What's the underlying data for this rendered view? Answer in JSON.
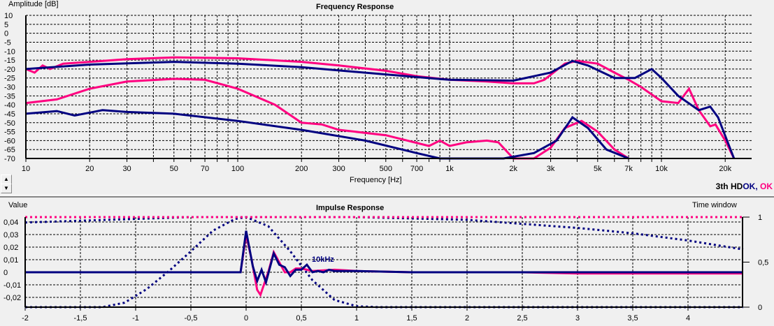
{
  "chart_data": [
    {
      "type": "line",
      "title": "Frequency Response",
      "ylabel": "Amplitude [dB]",
      "xlabel": "Frequency [Hz]",
      "xscale": "log",
      "xlim": [
        10,
        25000
      ],
      "ylim": [
        -70,
        10
      ],
      "yticks": [
        "10",
        "5",
        "0",
        "-5",
        "-10",
        "-15",
        "-20",
        "-25",
        "-30",
        "-35",
        "-40",
        "-45",
        "-50",
        "-55",
        "-60",
        "-65",
        "-70"
      ],
      "xticks": [
        {
          "v": 10,
          "l": "10"
        },
        {
          "v": 20,
          "l": "20"
        },
        {
          "v": 30,
          "l": "30"
        },
        {
          "v": 50,
          "l": "50"
        },
        {
          "v": 70,
          "l": "70"
        },
        {
          "v": 100,
          "l": "100"
        },
        {
          "v": 200,
          "l": "200"
        },
        {
          "v": 300,
          "l": "300"
        },
        {
          "v": 500,
          "l": "500"
        },
        {
          "v": 700,
          "l": "700"
        },
        {
          "v": 1000,
          "l": "1k"
        },
        {
          "v": 2000,
          "l": "2k"
        },
        {
          "v": 3000,
          "l": "3k"
        },
        {
          "v": 5000,
          "l": "5k"
        },
        {
          "v": 7000,
          "l": "7k"
        },
        {
          "v": 10000,
          "l": "10k"
        },
        {
          "v": 20000,
          "l": "20k"
        }
      ],
      "legend": {
        "prefix": "3th HD",
        "items": [
          {
            "label": "OK,",
            "color": "#000080"
          },
          {
            "label": " OK",
            "color": "#ff0080"
          }
        ]
      },
      "series": [
        {
          "name": "OK fundamental (magenta)",
          "color": "#ff0080",
          "points": [
            [
              10,
              -20
            ],
            [
              11,
              -22
            ],
            [
              12,
              -18
            ],
            [
              13,
              -20
            ],
            [
              15,
              -17
            ],
            [
              20,
              -16
            ],
            [
              30,
              -14.5
            ],
            [
              50,
              -13.5
            ],
            [
              100,
              -14
            ],
            [
              200,
              -16
            ],
            [
              300,
              -18
            ],
            [
              500,
              -21
            ],
            [
              700,
              -24
            ],
            [
              1000,
              -26
            ],
            [
              1500,
              -27
            ],
            [
              2000,
              -28
            ],
            [
              2500,
              -28
            ],
            [
              2800,
              -26
            ],
            [
              3500,
              -17
            ],
            [
              4000,
              -15.5
            ],
            [
              5000,
              -17
            ],
            [
              6000,
              -22
            ],
            [
              7000,
              -26
            ],
            [
              8000,
              -30
            ],
            [
              10000,
              -38
            ],
            [
              12000,
              -39
            ],
            [
              13500,
              -31
            ],
            [
              15000,
              -43
            ],
            [
              17000,
              -52
            ],
            [
              18000,
              -51
            ],
            [
              20000,
              -60
            ],
            [
              22000,
              -70
            ]
          ]
        },
        {
          "name": "OK fundamental (blue)",
          "color": "#000080",
          "points": [
            [
              10,
              -20
            ],
            [
              20,
              -17.5
            ],
            [
              50,
              -16
            ],
            [
              100,
              -17
            ],
            [
              200,
              -19
            ],
            [
              500,
              -23
            ],
            [
              1000,
              -26
            ],
            [
              2000,
              -26.5
            ],
            [
              3000,
              -22
            ],
            [
              3800,
              -15.5
            ],
            [
              4500,
              -18
            ],
            [
              6000,
              -25
            ],
            [
              7500,
              -25
            ],
            [
              9000,
              -20
            ],
            [
              10000,
              -25
            ],
            [
              12000,
              -35
            ],
            [
              15000,
              -43
            ],
            [
              17000,
              -41
            ],
            [
              18500,
              -47
            ],
            [
              22000,
              -70
            ]
          ]
        },
        {
          "name": "3th HD (magenta)",
          "color": "#ff0080",
          "points": [
            [
              10,
              -39
            ],
            [
              14,
              -37
            ],
            [
              20,
              -31
            ],
            [
              30,
              -27
            ],
            [
              50,
              -25.5
            ],
            [
              70,
              -26
            ],
            [
              100,
              -31
            ],
            [
              150,
              -40
            ],
            [
              200,
              -50
            ],
            [
              250,
              -51
            ],
            [
              300,
              -54
            ],
            [
              500,
              -57
            ],
            [
              800,
              -63
            ],
            [
              900,
              -60
            ],
            [
              1000,
              -63
            ],
            [
              1200,
              -61
            ],
            [
              1500,
              -60
            ],
            [
              1700,
              -61
            ],
            [
              2000,
              -70
            ],
            [
              2500,
              -70
            ],
            [
              3000,
              -64
            ],
            [
              3500,
              -53
            ],
            [
              4200,
              -49
            ],
            [
              5000,
              -55
            ],
            [
              6000,
              -65
            ],
            [
              7000,
              -70
            ]
          ]
        },
        {
          "name": "3th HD (blue)",
          "color": "#000080",
          "points": [
            [
              10,
              -45
            ],
            [
              14,
              -43.5
            ],
            [
              17,
              -46
            ],
            [
              23,
              -43
            ],
            [
              30,
              -44
            ],
            [
              50,
              -45
            ],
            [
              100,
              -49
            ],
            [
              200,
              -54
            ],
            [
              400,
              -60
            ],
            [
              700,
              -67
            ],
            [
              900,
              -70
            ],
            [
              1800,
              -70
            ],
            [
              2500,
              -67
            ],
            [
              3200,
              -60
            ],
            [
              3800,
              -47
            ],
            [
              4500,
              -53
            ],
            [
              5500,
              -65
            ],
            [
              7000,
              -70
            ]
          ]
        }
      ]
    },
    {
      "type": "line",
      "title": "Impulse Response",
      "ylabel": "Value",
      "y2label": "Time window",
      "xlim": [
        -2,
        4.5
      ],
      "ylim": [
        -0.028,
        0.044
      ],
      "y2lim": [
        0,
        1
      ],
      "yticks": [
        {
          "v": 0.04,
          "l": "0,04"
        },
        {
          "v": 0.03,
          "l": "0,03"
        },
        {
          "v": 0.02,
          "l": "0,02"
        },
        {
          "v": 0.01,
          "l": "0,01"
        },
        {
          "v": 0,
          "l": "0"
        },
        {
          "v": -0.01,
          "l": "-0,01"
        },
        {
          "v": -0.02,
          "l": "-0,02"
        }
      ],
      "y2ticks": [
        {
          "v": 1,
          "l": "1"
        },
        {
          "v": 0.5,
          "l": "0,5"
        },
        {
          "v": 0,
          "l": "0"
        }
      ],
      "xticks": [
        {
          "v": -2,
          "l": "-2"
        },
        {
          "v": -1.5,
          "l": "-1,5"
        },
        {
          "v": -1,
          "l": "-1"
        },
        {
          "v": -0.5,
          "l": "-0,5"
        },
        {
          "v": 0,
          "l": "0"
        },
        {
          "v": 0.5,
          "l": "0,5"
        },
        {
          "v": 1,
          "l": "1"
        },
        {
          "v": 1.5,
          "l": "1,5"
        },
        {
          "v": 2,
          "l": "2"
        },
        {
          "v": 2.5,
          "l": "2,5"
        },
        {
          "v": 3,
          "l": "3"
        },
        {
          "v": 3.5,
          "l": "3,5"
        },
        {
          "v": 4,
          "l": "4"
        }
      ],
      "annotation": "10kHz",
      "series": [
        {
          "name": "impulse magenta",
          "color": "#ff0080",
          "points": [
            [
              -2,
              0
            ],
            [
              -0.05,
              0
            ],
            [
              0,
              0.03
            ],
            [
              0.05,
              0.01
            ],
            [
              0.1,
              -0.014
            ],
            [
              0.13,
              -0.018
            ],
            [
              0.2,
              0
            ],
            [
              0.25,
              0.016
            ],
            [
              0.3,
              0.008
            ],
            [
              0.35,
              0
            ],
            [
              0.4,
              0
            ],
            [
              0.45,
              0.003
            ],
            [
              0.5,
              0.003
            ],
            [
              0.55,
              0.002
            ],
            [
              0.6,
              0.001
            ],
            [
              0.8,
              0.002
            ],
            [
              1,
              0.001
            ],
            [
              1.5,
              0
            ],
            [
              2.5,
              0
            ],
            [
              3,
              -0.001
            ],
            [
              4.5,
              -0.001
            ]
          ]
        },
        {
          "name": "impulse blue",
          "color": "#000080",
          "points": [
            [
              -2,
              0
            ],
            [
              -0.05,
              0
            ],
            [
              0,
              0.033
            ],
            [
              0.06,
              0.005
            ],
            [
              0.1,
              -0.007
            ],
            [
              0.14,
              0.002
            ],
            [
              0.18,
              -0.008
            ],
            [
              0.25,
              0.015
            ],
            [
              0.3,
              0.006
            ],
            [
              0.35,
              0.004
            ],
            [
              0.4,
              -0.003
            ],
            [
              0.45,
              0.002
            ],
            [
              0.5,
              0.002
            ],
            [
              0.55,
              0.006
            ],
            [
              0.6,
              0
            ],
            [
              0.65,
              0.001
            ],
            [
              0.7,
              0
            ],
            [
              0.75,
              0.002
            ],
            [
              0.8,
              0.001
            ],
            [
              1,
              0.001
            ],
            [
              1.5,
              0
            ],
            [
              4.5,
              0
            ]
          ]
        },
        {
          "name": "time window 1",
          "color": "#000080",
          "dotted": true,
          "axis": "y2",
          "points": [
            [
              -2,
              0
            ],
            [
              -1.3,
              0
            ],
            [
              -1.1,
              0.05
            ],
            [
              -0.9,
              0.2
            ],
            [
              -0.7,
              0.4
            ],
            [
              -0.5,
              0.62
            ],
            [
              -0.3,
              0.85
            ],
            [
              -0.1,
              0.98
            ],
            [
              0,
              1
            ],
            [
              0.2,
              0.9
            ],
            [
              0.4,
              0.62
            ],
            [
              0.6,
              0.3
            ],
            [
              0.8,
              0.08
            ],
            [
              1,
              0.01
            ],
            [
              1.2,
              0
            ],
            [
              4.5,
              0
            ]
          ]
        },
        {
          "name": "time window 2",
          "color": "#000080",
          "dotted": true,
          "axis": "y2",
          "points": [
            [
              -2,
              0.94
            ],
            [
              -1.5,
              0.96
            ],
            [
              -1,
              0.98
            ],
            [
              -0.5,
              1
            ],
            [
              1,
              1
            ],
            [
              2,
              0.97
            ],
            [
              3,
              0.88
            ],
            [
              3.5,
              0.82
            ],
            [
              4,
              0.74
            ],
            [
              4.5,
              0.64
            ]
          ]
        },
        {
          "name": "time window 3",
          "color": "#ff0080",
          "dotted": true,
          "axis": "y2",
          "points": [
            [
              -2,
              1
            ],
            [
              4.5,
              1
            ]
          ]
        }
      ]
    }
  ]
}
